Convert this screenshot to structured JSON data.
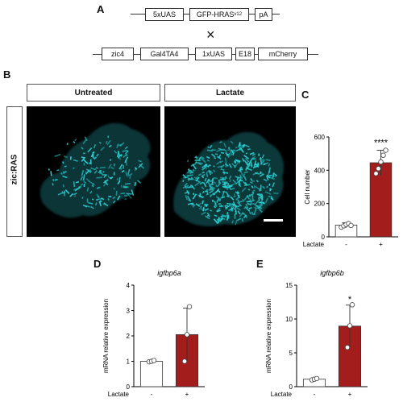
{
  "panels": {
    "a": "A",
    "b": "B",
    "c": "C",
    "d": "D",
    "e": "E"
  },
  "construct_top": [
    "5xUAS",
    "GFP-HRAS",
    "pA"
  ],
  "construct_top_sup": "v12",
  "cross_symbol": "×",
  "construct_bottom": [
    "zic4",
    "Gal4TA4",
    "1xUAS",
    "E18",
    "mCherry"
  ],
  "micrograph_headers": [
    "Untreated",
    "Lactate"
  ],
  "side_label": "zic:RAS",
  "colors": {
    "dark_red": "#a31d1d",
    "cyan": "#2ad3d6",
    "white_bar": "#ffffff"
  },
  "chart_data": [
    {
      "type": "bar",
      "categories": [
        "-",
        "+"
      ],
      "values": [
        70,
        445
      ],
      "errors": [
        15,
        75
      ],
      "points": [
        [
          58,
          66,
          74,
          80,
          68
        ],
        [
          380,
          410,
          450,
          490,
          520
        ]
      ],
      "significance": "****",
      "title": "",
      "xlabel": "Lactate",
      "ylabel": "Cell number",
      "ylim": [
        0,
        600
      ],
      "yticks": [
        0,
        200,
        400,
        600
      ],
      "bar_colors": [
        "#ffffff",
        "#a31d1d"
      ]
    },
    {
      "type": "bar",
      "categories": [
        "-",
        "+"
      ],
      "values": [
        1.0,
        2.05
      ],
      "errors": [
        0.03,
        1.05
      ],
      "points": [
        [
          0.98,
          1.0,
          1.03
        ],
        [
          1.0,
          2.05,
          3.15
        ]
      ],
      "significance": "",
      "title": "igfbp6a",
      "xlabel": "Lactate",
      "ylabel": "mRNA relative expression",
      "ylim": [
        0,
        4
      ],
      "yticks": [
        0,
        1,
        2,
        3,
        4
      ],
      "bar_colors": [
        "#ffffff",
        "#a31d1d"
      ]
    },
    {
      "type": "bar",
      "categories": [
        "-",
        "+"
      ],
      "values": [
        1.1,
        8.95
      ],
      "errors": [
        0.1,
        3.1
      ],
      "points": [
        [
          1.0,
          1.1,
          1.2
        ],
        [
          5.8,
          9.0,
          12.1
        ]
      ],
      "significance": "*",
      "title": "igfbp6b",
      "xlabel": "Lactate",
      "ylabel": "mRNA relative expression",
      "ylim": [
        0,
        15
      ],
      "yticks": [
        0,
        5,
        10,
        15
      ],
      "bar_colors": [
        "#ffffff",
        "#a31d1d"
      ]
    }
  ]
}
